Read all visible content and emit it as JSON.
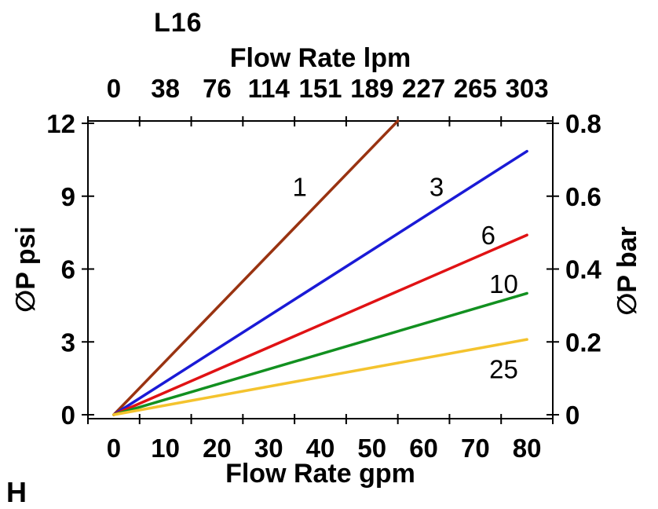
{
  "title": "L16",
  "corner_label": "H",
  "axes": {
    "top": {
      "title": "Flow Rate lpm"
    },
    "bottom": {
      "title": "Flow Rate gpm"
    },
    "left": {
      "title": "∅P psi"
    },
    "right": {
      "title": "∅P bar"
    }
  },
  "colors": {
    "axis": "#000000",
    "text": "#000000",
    "background": "#ffffff"
  },
  "chart_data": {
    "type": "line",
    "title": "L16",
    "xlabel_bottom": "Flow Rate gpm",
    "xlabel_top": "Flow Rate lpm",
    "ylabel_left": "∅P psi",
    "ylabel_right": "∅P bar",
    "grid": false,
    "legend": "inline-curve-labels",
    "x_range_gpm": [
      0,
      80
    ],
    "y_range_psi": [
      0,
      12
    ],
    "y_range_bar": [
      0,
      0.8
    ],
    "x_ticks_gpm": [
      0,
      10,
      20,
      30,
      40,
      50,
      60,
      70,
      80
    ],
    "x_ticks_lpm": [
      0,
      38,
      76,
      114,
      151,
      189,
      227,
      265,
      303
    ],
    "y_ticks_psi": [
      0,
      3,
      6,
      9,
      12
    ],
    "y_ticks_bar": [
      0,
      0.2,
      0.4,
      0.6,
      0.8
    ],
    "series": [
      {
        "name": "1",
        "color": "#993311",
        "points": [
          [
            0,
            0
          ],
          [
            55,
            12.1
          ]
        ],
        "label_pos": [
          36.0,
          9.4
        ]
      },
      {
        "name": "3",
        "color": "#1a1ad6",
        "points": [
          [
            0,
            0
          ],
          [
            80,
            10.85
          ]
        ],
        "label_pos": [
          62.5,
          9.4
        ]
      },
      {
        "name": "6",
        "color": "#e01214",
        "points": [
          [
            0,
            0
          ],
          [
            80,
            7.4
          ]
        ],
        "label_pos": [
          72.5,
          7.4
        ]
      },
      {
        "name": "10",
        "color": "#129020",
        "points": [
          [
            0,
            0
          ],
          [
            80,
            5.0
          ]
        ],
        "label_pos": [
          75.5,
          5.4
        ]
      },
      {
        "name": "25",
        "color": "#f4c32e",
        "points": [
          [
            0,
            0
          ],
          [
            80,
            3.1
          ]
        ],
        "label_pos": [
          75.5,
          1.9
        ]
      }
    ]
  }
}
